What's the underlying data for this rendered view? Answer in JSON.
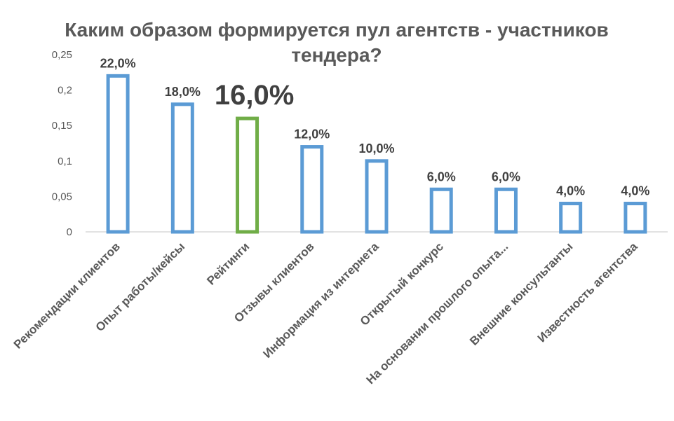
{
  "chart_data": {
    "type": "bar",
    "title_lines": [
      "Каким образом формируется пул агентств - участников",
      "тендера?"
    ],
    "categories": [
      "Рекомендации клиентов",
      "Опыт работы/кейсы",
      "Рейтинги",
      "Отзывы клиентов",
      "Информация из интернета",
      "Открытый конкурс",
      "На основании прошлого опыта...",
      "Внешние консультанты",
      "Известность агентства"
    ],
    "values": [
      0.22,
      0.18,
      0.16,
      0.12,
      0.1,
      0.06,
      0.06,
      0.04,
      0.04
    ],
    "data_labels": [
      "22,0%",
      "18,0%",
      "16,0%",
      "12,0%",
      "10,0%",
      "6,0%",
      "6,0%",
      "4,0%",
      "4,0%"
    ],
    "highlight_index": 2,
    "ylim": [
      0,
      0.25
    ],
    "yticks": [
      0,
      0.05,
      0.1,
      0.15,
      0.2,
      0.25
    ],
    "ytick_labels": [
      "0",
      "0,05",
      "0,1",
      "0,15",
      "0,2",
      "0,25"
    ],
    "xlabel": "",
    "ylabel": "",
    "grid": false,
    "colors": {
      "bar_outline": "#5b9bd5",
      "highlight_outline": "#70ad47",
      "bar_fill": "#ffffff",
      "axis": "#d9d9d9",
      "text": "#595959"
    }
  }
}
